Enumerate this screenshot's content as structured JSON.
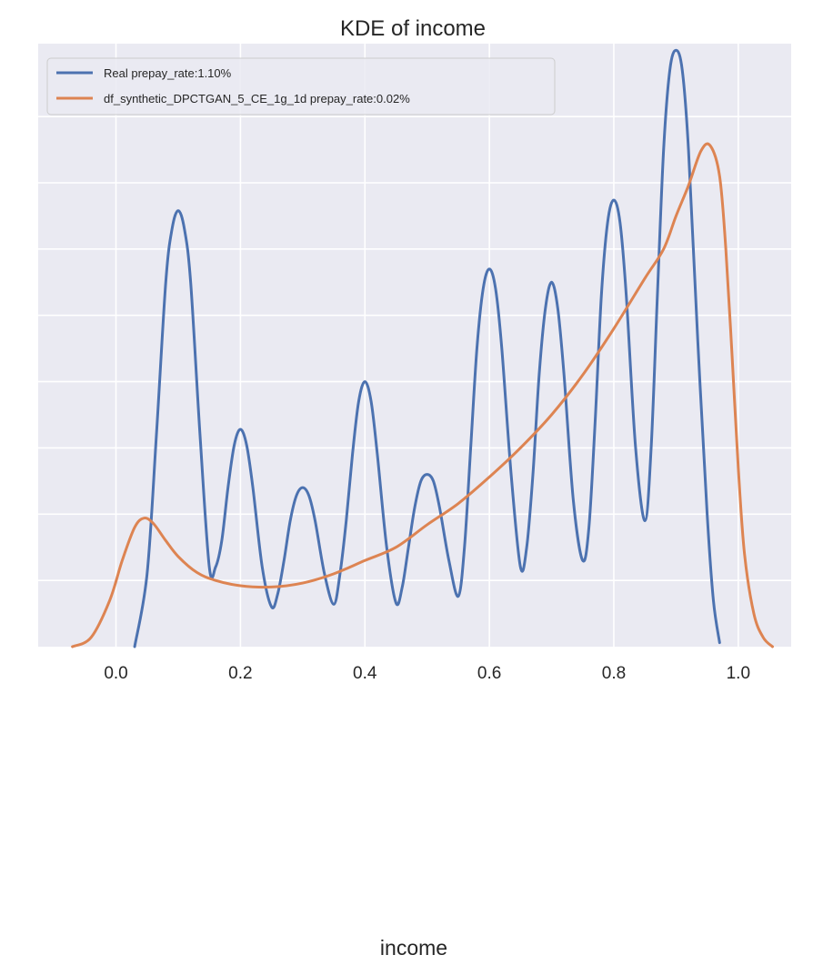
{
  "chart_data": {
    "type": "line",
    "title": "KDE of income",
    "xlabel": "income",
    "ylabel": "",
    "xlim": [
      -0.125,
      1.085
    ],
    "ylim": [
      0,
      4.55
    ],
    "x_ticks": [
      0.0,
      0.2,
      0.4,
      0.6,
      0.8,
      1.0
    ],
    "x_tick_labels": [
      "0.0",
      "0.2",
      "0.4",
      "0.6",
      "0.8",
      "1.0"
    ],
    "y_gridlines": [
      0.5,
      1.0,
      1.5,
      2.0,
      2.5,
      3.0,
      3.5,
      4.0
    ],
    "y_tick_labels_shown": false,
    "grid": true,
    "legend_position": "top-left",
    "background": "#eaeaf2",
    "series": [
      {
        "name": "Real prepay_rate:1.10%",
        "color": "#4c72b0",
        "x": [
          0.03,
          0.05,
          0.065,
          0.08,
          0.09,
          0.1,
          0.11,
          0.12,
          0.135,
          0.15,
          0.16,
          0.17,
          0.18,
          0.19,
          0.2,
          0.21,
          0.22,
          0.235,
          0.25,
          0.26,
          0.27,
          0.28,
          0.29,
          0.3,
          0.31,
          0.32,
          0.335,
          0.35,
          0.36,
          0.37,
          0.38,
          0.39,
          0.4,
          0.41,
          0.42,
          0.435,
          0.45,
          0.46,
          0.47,
          0.48,
          0.49,
          0.5,
          0.51,
          0.52,
          0.535,
          0.55,
          0.56,
          0.57,
          0.58,
          0.59,
          0.6,
          0.61,
          0.62,
          0.635,
          0.65,
          0.66,
          0.67,
          0.68,
          0.69,
          0.7,
          0.71,
          0.72,
          0.735,
          0.75,
          0.76,
          0.77,
          0.78,
          0.79,
          0.8,
          0.81,
          0.82,
          0.835,
          0.85,
          0.86,
          0.87,
          0.88,
          0.89,
          0.9,
          0.91,
          0.92,
          0.935,
          0.95,
          0.96,
          0.97
        ],
        "y": [
          0.0,
          0.55,
          1.6,
          2.75,
          3.15,
          3.29,
          3.15,
          2.75,
          1.6,
          0.6,
          0.6,
          0.8,
          1.2,
          1.52,
          1.64,
          1.52,
          1.2,
          0.6,
          0.3,
          0.4,
          0.65,
          0.95,
          1.14,
          1.2,
          1.14,
          0.95,
          0.55,
          0.32,
          0.55,
          0.95,
          1.45,
          1.85,
          2.0,
          1.85,
          1.45,
          0.75,
          0.33,
          0.45,
          0.75,
          1.05,
          1.25,
          1.3,
          1.25,
          1.05,
          0.65,
          0.38,
          0.75,
          1.5,
          2.25,
          2.7,
          2.85,
          2.7,
          2.25,
          1.3,
          0.6,
          0.75,
          1.3,
          2.05,
          2.55,
          2.75,
          2.55,
          2.05,
          1.1,
          0.65,
          0.9,
          1.7,
          2.65,
          3.2,
          3.37,
          3.2,
          2.65,
          1.5,
          0.95,
          1.5,
          2.65,
          3.75,
          4.35,
          4.5,
          4.35,
          3.75,
          2.3,
          1.0,
          0.35,
          0.03
        ]
      },
      {
        "name": "df_synthetic_DPCTGAN_5_CE_1g_1d prepay_rate:0.02%",
        "color": "#dd8452",
        "x": [
          -0.07,
          -0.04,
          -0.01,
          0.01,
          0.03,
          0.045,
          0.06,
          0.08,
          0.1,
          0.13,
          0.16,
          0.2,
          0.25,
          0.3,
          0.35,
          0.4,
          0.45,
          0.5,
          0.55,
          0.6,
          0.65,
          0.7,
          0.75,
          0.8,
          0.85,
          0.88,
          0.9,
          0.92,
          0.94,
          0.955,
          0.97,
          0.98,
          0.99,
          1.0,
          1.01,
          1.025,
          1.04,
          1.055
        ],
        "y": [
          0.0,
          0.07,
          0.35,
          0.65,
          0.9,
          0.97,
          0.93,
          0.8,
          0.68,
          0.56,
          0.5,
          0.46,
          0.45,
          0.48,
          0.55,
          0.65,
          0.75,
          0.92,
          1.08,
          1.28,
          1.5,
          1.75,
          2.05,
          2.4,
          2.78,
          3.0,
          3.25,
          3.48,
          3.74,
          3.78,
          3.55,
          3.0,
          2.2,
          1.35,
          0.7,
          0.25,
          0.07,
          0.0
        ]
      }
    ]
  }
}
